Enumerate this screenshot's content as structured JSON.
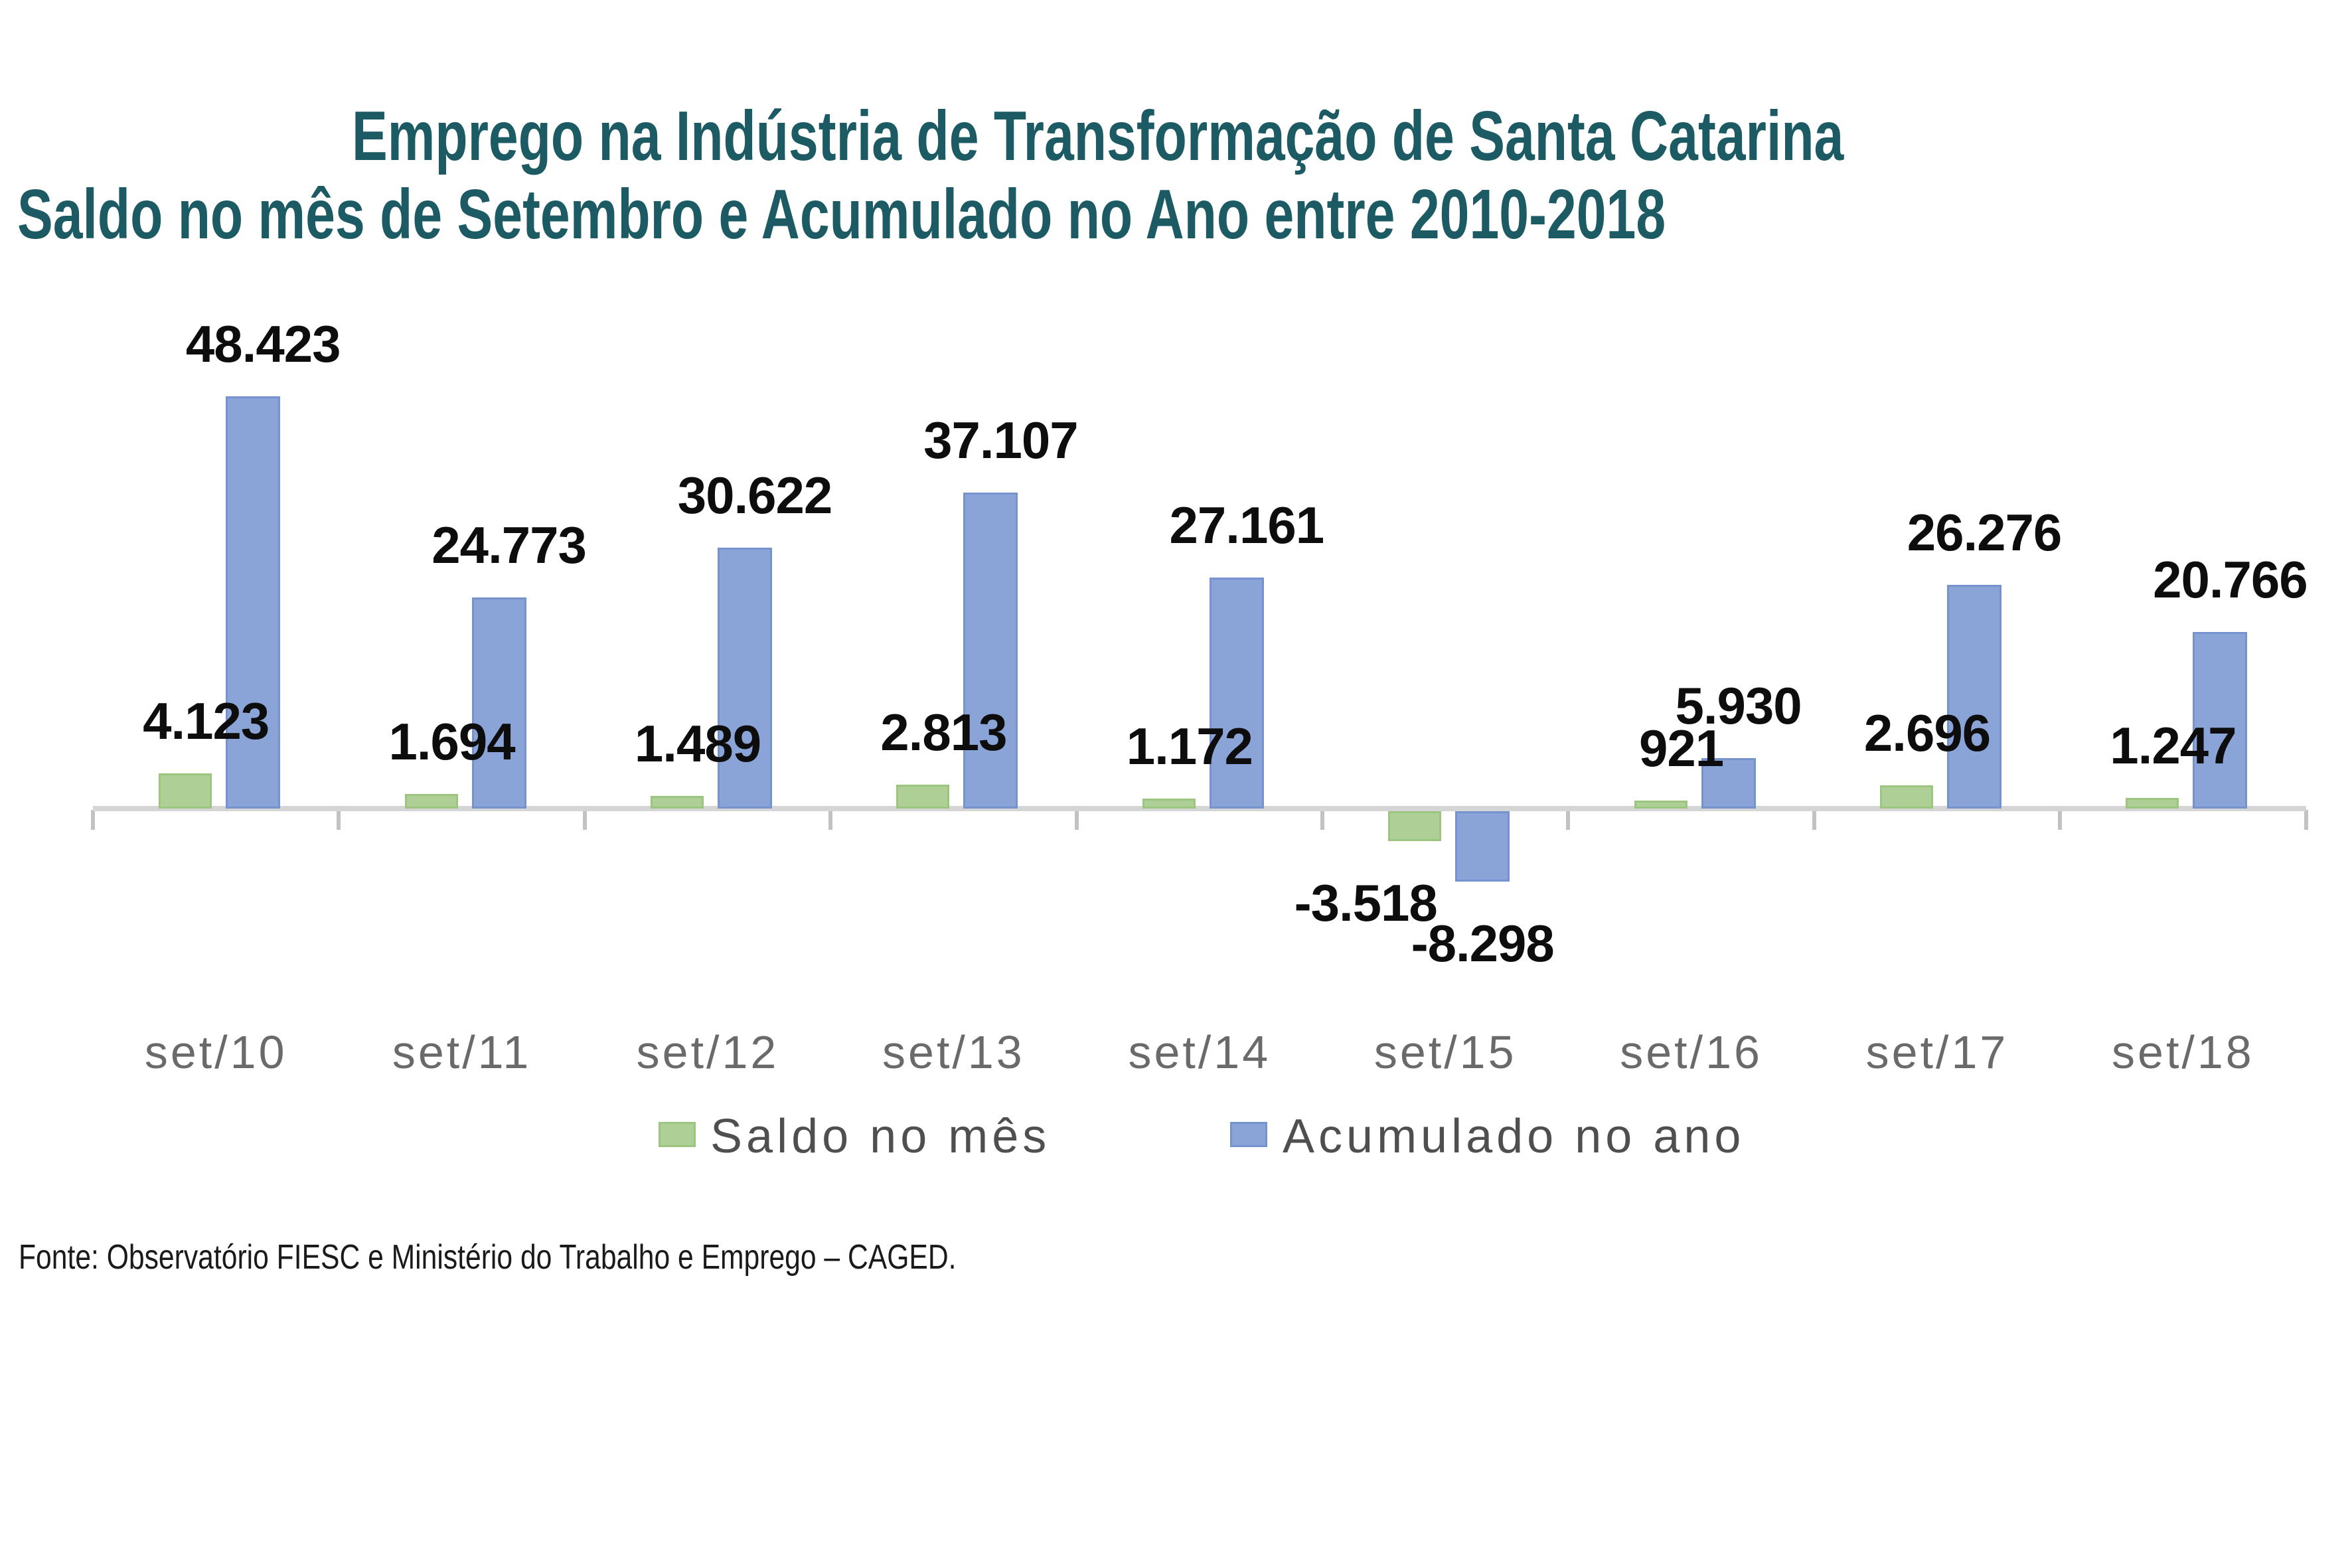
{
  "title": {
    "line1": "Emprego na Indústria de Transformação de Santa Catarina",
    "line2": "Saldo no mês de Setembro e Acumulado no Ano entre 2010-2018"
  },
  "footer": {
    "source": "Fonte: Observatório FIESC e Ministério do Trabalho e Emprego – CAGED."
  },
  "colors": {
    "title_text": "#1c5a64",
    "saldo_fill": "#aed096",
    "saldo_border": "#9cc57f",
    "acumulado_fill": "#8ba4d7",
    "acumulado_border": "#7793cd",
    "axis_line": "#d5d5d5",
    "tick": "#c2c2c2",
    "category_text": "#6a6a6a",
    "legend_text": "#4f4f4f",
    "value_text": "#0d0d0d"
  },
  "chart_data": {
    "type": "bar",
    "title": "Emprego na Indústria de Transformação de Santa Catarina",
    "subtitle": "Saldo no mês de Setembro e Acumulado no Ano entre 2010-2018",
    "xlabel": "",
    "ylabel": "",
    "categories": [
      "set/10",
      "set/11",
      "set/12",
      "set/13",
      "set/14",
      "set/15",
      "set/16",
      "set/17",
      "set/18"
    ],
    "series": [
      {
        "name": "Saldo no mês",
        "values": [
          4123,
          1694,
          1489,
          2813,
          1172,
          -3518,
          921,
          2696,
          1247
        ],
        "labels": [
          "4.123",
          "1.694",
          "1.489",
          "2.813",
          "1.172",
          "-3.518",
          "921",
          "2.696",
          "1.247"
        ]
      },
      {
        "name": "Acumulado no ano",
        "values": [
          48423,
          24773,
          30622,
          37107,
          27161,
          -8298,
          5930,
          26276,
          20766
        ],
        "labels": [
          "48.423",
          "24.773",
          "30.622",
          "37.107",
          "27.161",
          "-8.298",
          "5.930",
          "26.276",
          "20.766"
        ]
      }
    ],
    "ylim": [
      -8298,
      48423
    ],
    "y_axis_labels_visible": false,
    "gridlines": false,
    "data_labels_visible": true,
    "legend_position": "bottom"
  }
}
